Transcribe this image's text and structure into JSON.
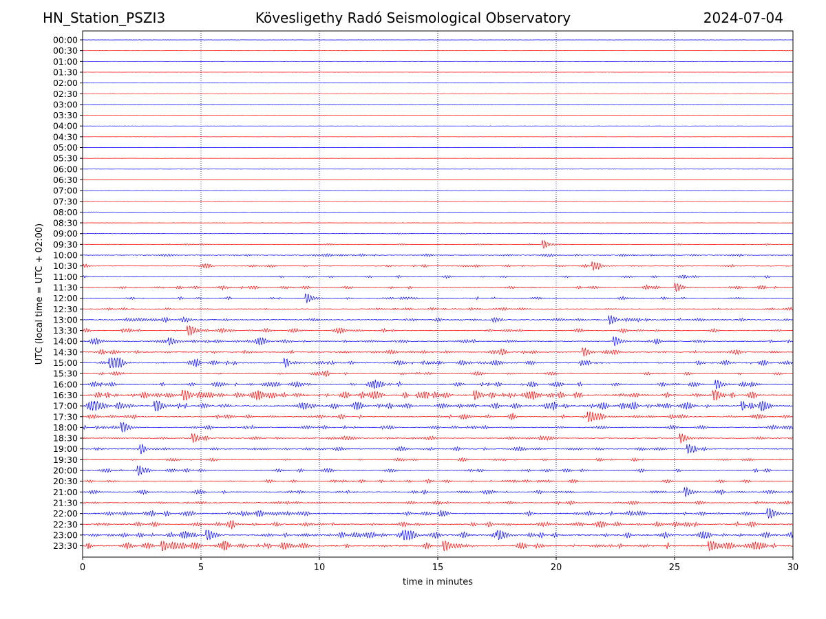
{
  "header": {
    "station": "HN_Station_PSZI3",
    "title": "Kövesligethy Radó Seismological Observatory",
    "date": "2024-07-04"
  },
  "colors": {
    "series_a": "#0000ff",
    "series_b": "#ff0000",
    "grid": "#0000a0",
    "axis": "#000000"
  },
  "chart_data": {
    "type": "line",
    "title": "Kövesligethy Radó Seismological Observatory",
    "xlabel": "time in minutes",
    "ylabel": "UTC (local time = UTC + 02:00)",
    "xlim": [
      0,
      30
    ],
    "xticks": [
      0,
      5,
      10,
      15,
      20,
      25,
      30
    ],
    "vertical_gridlines": [
      5,
      10,
      15,
      20,
      25
    ],
    "row_labels": [
      "00:00",
      "00:30",
      "01:00",
      "01:30",
      "02:00",
      "02:30",
      "03:00",
      "03:30",
      "04:00",
      "04:30",
      "05:00",
      "05:30",
      "06:00",
      "06:30",
      "07:00",
      "07:30",
      "08:00",
      "08:30",
      "09:00",
      "09:30",
      "10:00",
      "10:30",
      "11:00",
      "11:30",
      "12:00",
      "12:30",
      "13:00",
      "13:30",
      "14:00",
      "14:30",
      "15:00",
      "15:30",
      "16:00",
      "16:30",
      "17:00",
      "17:30",
      "18:00",
      "18:30",
      "19:00",
      "19:30",
      "20:00",
      "20:30",
      "21:00",
      "21:30",
      "22:00",
      "22:30",
      "23:00",
      "23:30"
    ],
    "trace_colors": [
      "#0000ff",
      "#ff0000"
    ],
    "trace_activity": [
      0.05,
      0.1,
      0.1,
      0.05,
      0.05,
      0.1,
      0.1,
      0.05,
      0.05,
      0.05,
      0.1,
      0.05,
      0.05,
      0.05,
      0.05,
      0.1,
      0.1,
      0.05,
      0.2,
      0.3,
      0.6,
      0.6,
      0.5,
      0.7,
      0.6,
      0.6,
      0.8,
      0.8,
      0.9,
      0.9,
      1.0,
      0.7,
      1.0,
      1.4,
      1.3,
      0.9,
      0.8,
      0.7,
      0.8,
      0.6,
      0.7,
      0.7,
      0.8,
      0.7,
      1.0,
      1.0,
      1.2,
      1.3
    ],
    "events": [
      {
        "row": "09:30",
        "x": 19.5,
        "amp": 1.5
      },
      {
        "row": "10:30",
        "x": 21.6,
        "amp": 1.6
      },
      {
        "row": "11:30",
        "x": 25.1,
        "amp": 1.6
      },
      {
        "row": "12:00",
        "x": 9.5,
        "amp": 1.8
      },
      {
        "row": "13:00",
        "x": 22.3,
        "amp": 1.7
      },
      {
        "row": "13:30",
        "x": 4.5,
        "amp": 1.8
      },
      {
        "row": "14:00",
        "x": 3.7,
        "amp": 1.8
      },
      {
        "row": "14:00",
        "x": 22.5,
        "amp": 1.8
      },
      {
        "row": "14:30",
        "x": 21.2,
        "amp": 1.7
      },
      {
        "row": "15:00",
        "x": 1.2,
        "amp": 3.0
      },
      {
        "row": "15:00",
        "x": 8.6,
        "amp": 1.8
      },
      {
        "row": "16:00",
        "x": 26.8,
        "amp": 1.8
      },
      {
        "row": "16:30",
        "x": 4.3,
        "amp": 3.0
      },
      {
        "row": "16:30",
        "x": 26.7,
        "amp": 3.3
      },
      {
        "row": "16:30",
        "x": 16.6,
        "amp": 2.0
      },
      {
        "row": "17:00",
        "x": 0.6,
        "amp": 3.0
      },
      {
        "row": "17:00",
        "x": 3.1,
        "amp": 3.3
      },
      {
        "row": "17:00",
        "x": 27.9,
        "amp": 2.0
      },
      {
        "row": "17:30",
        "x": 21.4,
        "amp": 3.2
      },
      {
        "row": "18:00",
        "x": 1.7,
        "amp": 2.2
      },
      {
        "row": "18:30",
        "x": 4.7,
        "amp": 1.8
      },
      {
        "row": "18:30",
        "x": 25.3,
        "amp": 1.8
      },
      {
        "row": "19:00",
        "x": 2.5,
        "amp": 1.8
      },
      {
        "row": "19:00",
        "x": 25.6,
        "amp": 1.8
      },
      {
        "row": "20:00",
        "x": 2.4,
        "amp": 1.8
      },
      {
        "row": "21:00",
        "x": 25.5,
        "amp": 1.8
      },
      {
        "row": "22:00",
        "x": 29.0,
        "amp": 2.5
      },
      {
        "row": "23:00",
        "x": 5.3,
        "amp": 2.3
      },
      {
        "row": "23:00",
        "x": 13.6,
        "amp": 2.3
      },
      {
        "row": "23:00",
        "x": 17.6,
        "amp": 2.5
      },
      {
        "row": "23:30",
        "x": 3.4,
        "amp": 2.6
      },
      {
        "row": "23:30",
        "x": 15.3,
        "amp": 2.6
      },
      {
        "row": "23:30",
        "x": 26.5,
        "amp": 2.3
      }
    ]
  }
}
